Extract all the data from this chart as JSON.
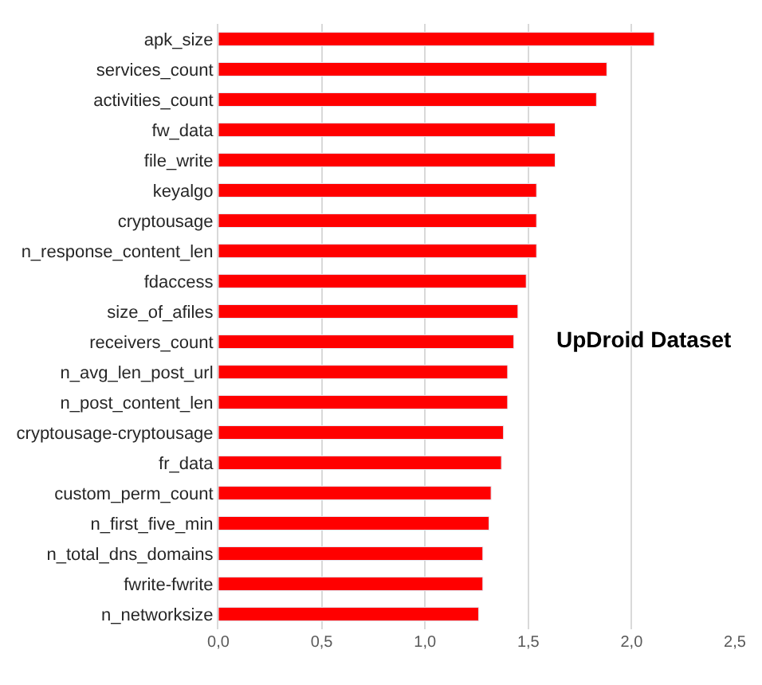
{
  "chart_data": {
    "type": "bar",
    "orientation": "horizontal",
    "categories": [
      "apk_size",
      "services_count",
      "activities_count",
      "fw_data",
      "file_write",
      "keyalgo",
      "cryptousage",
      "n_response_content_len",
      "fdaccess",
      "size_of_afiles",
      "receivers_count",
      "n_avg_len_post_url",
      "n_post_content_len",
      "cryptousage-cryptousage",
      "fr_data",
      "custom_perm_count",
      "n_first_five_min",
      "n_total_dns_domains",
      "fwrite-fwrite",
      "n_networksize"
    ],
    "values": [
      2.11,
      1.88,
      1.83,
      1.63,
      1.63,
      1.54,
      1.54,
      1.54,
      1.49,
      1.45,
      1.43,
      1.4,
      1.4,
      1.38,
      1.37,
      1.32,
      1.31,
      1.28,
      1.28,
      1.26
    ],
    "color": "#ff0000",
    "xlim": [
      0,
      2.5
    ],
    "xticks": [
      {
        "value": 0,
        "label": "0,0"
      },
      {
        "value": 0.5,
        "label": "0,5"
      },
      {
        "value": 1,
        "label": "1,0"
      },
      {
        "value": 1.5,
        "label": "1,5"
      },
      {
        "value": 2,
        "label": "2,0"
      },
      {
        "value": 2.5,
        "label": "2,5"
      }
    ],
    "grid": "x",
    "annotations": [
      "UpDroid Dataset"
    ]
  }
}
